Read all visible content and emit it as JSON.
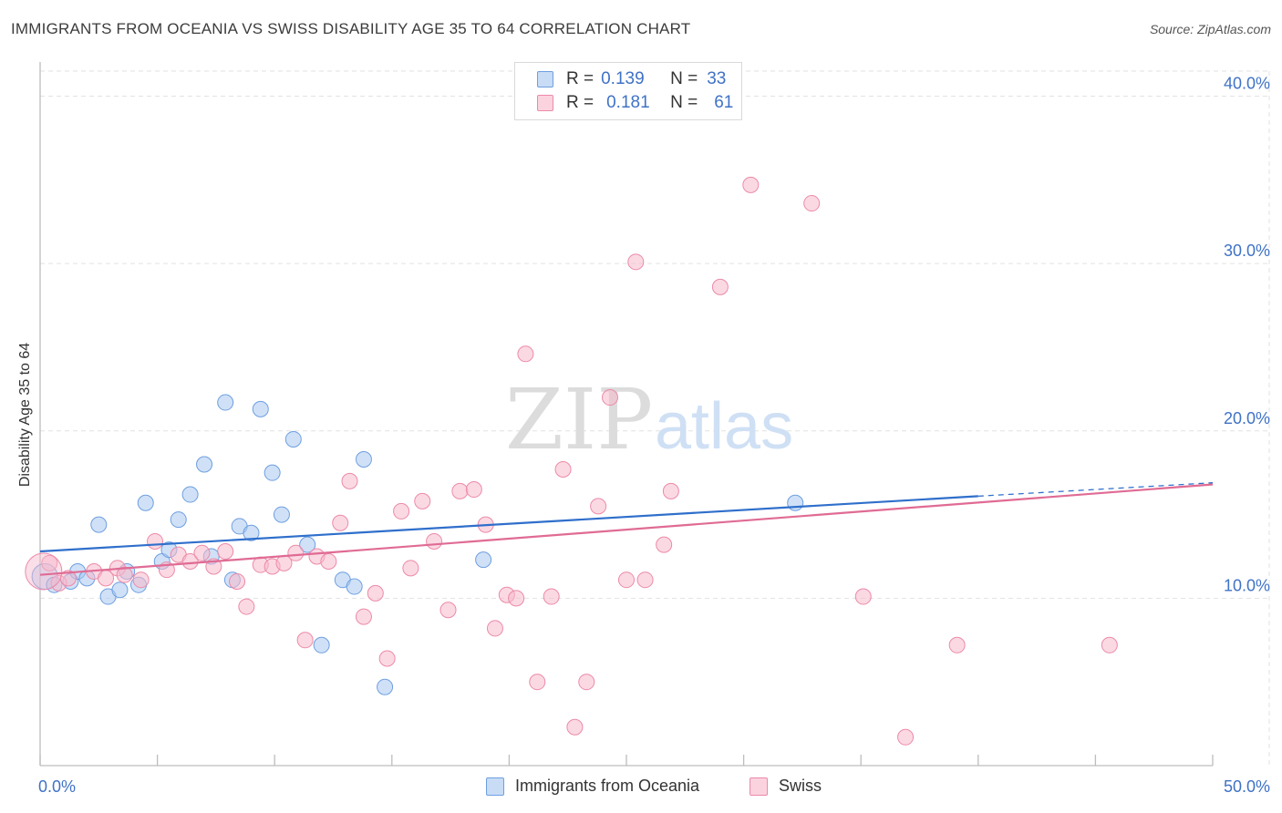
{
  "header": {
    "title": "IMMIGRANTS FROM OCEANIA VS SWISS DISABILITY AGE 35 TO 64 CORRELATION CHART",
    "source": "Source: ZipAtlas.com"
  },
  "watermark": {
    "zip": "ZIP",
    "atlas": "atlas"
  },
  "stats_legend": {
    "rows": [
      {
        "r_label": "R =",
        "r_value": "0.139",
        "n_label": "N =",
        "n_value": "33",
        "color": "#a9c8f0"
      },
      {
        "r_label": "R =",
        "r_value": "0.181",
        "n_label": "N =",
        "n_value": "61",
        "color": "#f7b9cc"
      }
    ]
  },
  "chart_data": {
    "type": "scatter",
    "title": "IMMIGRANTS FROM OCEANIA VS SWISS DISABILITY AGE 35 TO 64 CORRELATION CHART",
    "xlabel": "",
    "ylabel": "Disability Age 35 to 64",
    "xlim": [
      0,
      50
    ],
    "ylim": [
      0,
      41.5
    ],
    "x_tick_labels": [
      "0.0%",
      "50.0%"
    ],
    "y_ticks": [
      10,
      20,
      30,
      40
    ],
    "y_tick_labels": [
      "10.0%",
      "20.0%",
      "30.0%",
      "40.0%"
    ],
    "grid": true,
    "legend_position": "bottom",
    "series": [
      {
        "name": "Immigrants from Oceania",
        "color": "#a9c8f0",
        "stroke": "#6e9fe0",
        "line_color": "#2f6fcb",
        "trend": {
          "x0": 0,
          "y0": 12.8,
          "x1": 40,
          "y1": 16.1,
          "dash_to_x": 50,
          "dash_to_y": 16.9
        },
        "points": [
          [
            0.2,
            11.3
          ],
          [
            0.6,
            10.8
          ],
          [
            1.3,
            11.0
          ],
          [
            1.6,
            11.6
          ],
          [
            2.0,
            11.2
          ],
          [
            2.5,
            14.4
          ],
          [
            2.9,
            10.1
          ],
          [
            3.4,
            10.5
          ],
          [
            3.7,
            11.6
          ],
          [
            4.2,
            10.8
          ],
          [
            4.5,
            15.7
          ],
          [
            5.2,
            12.2
          ],
          [
            5.5,
            12.9
          ],
          [
            5.9,
            14.7
          ],
          [
            6.4,
            16.2
          ],
          [
            7.0,
            18.0
          ],
          [
            7.3,
            12.5
          ],
          [
            7.9,
            21.7
          ],
          [
            8.2,
            11.1
          ],
          [
            8.5,
            14.3
          ],
          [
            9.0,
            13.9
          ],
          [
            9.4,
            21.3
          ],
          [
            9.9,
            17.5
          ],
          [
            10.3,
            15.0
          ],
          [
            10.8,
            19.5
          ],
          [
            11.4,
            13.2
          ],
          [
            12.0,
            7.2
          ],
          [
            12.9,
            11.1
          ],
          [
            13.4,
            10.7
          ],
          [
            13.8,
            18.3
          ],
          [
            14.7,
            4.7
          ],
          [
            18.9,
            12.3
          ],
          [
            32.2,
            15.7
          ]
        ]
      },
      {
        "name": "Swiss",
        "color": "#f7b9cc",
        "stroke": "#ec8aa8",
        "line_color": "#e06b94",
        "trend": {
          "x0": 0,
          "y0": 11.4,
          "x1": 50,
          "y1": 16.8
        },
        "points": [
          [
            0.4,
            12.1
          ],
          [
            0.8,
            10.9
          ],
          [
            1.2,
            11.2
          ],
          [
            2.3,
            11.6
          ],
          [
            2.8,
            11.2
          ],
          [
            3.3,
            11.8
          ],
          [
            3.6,
            11.4
          ],
          [
            4.3,
            11.1
          ],
          [
            4.9,
            13.4
          ],
          [
            5.4,
            11.7
          ],
          [
            5.9,
            12.6
          ],
          [
            6.4,
            12.2
          ],
          [
            6.9,
            12.7
          ],
          [
            7.4,
            11.9
          ],
          [
            7.9,
            12.8
          ],
          [
            8.4,
            11.0
          ],
          [
            8.8,
            9.5
          ],
          [
            9.4,
            12.0
          ],
          [
            9.9,
            11.9
          ],
          [
            10.4,
            12.1
          ],
          [
            10.9,
            12.7
          ],
          [
            11.3,
            7.5
          ],
          [
            11.8,
            12.5
          ],
          [
            12.3,
            12.2
          ],
          [
            12.8,
            14.5
          ],
          [
            13.2,
            17.0
          ],
          [
            13.8,
            8.9
          ],
          [
            14.3,
            10.3
          ],
          [
            14.8,
            6.4
          ],
          [
            15.4,
            15.2
          ],
          [
            15.8,
            11.8
          ],
          [
            16.3,
            15.8
          ],
          [
            16.8,
            13.4
          ],
          [
            17.4,
            9.3
          ],
          [
            17.9,
            16.4
          ],
          [
            18.5,
            16.5
          ],
          [
            19.0,
            14.4
          ],
          [
            19.4,
            8.2
          ],
          [
            19.9,
            10.2
          ],
          [
            20.3,
            10.0
          ],
          [
            20.7,
            24.6
          ],
          [
            21.2,
            5.0
          ],
          [
            21.8,
            10.1
          ],
          [
            22.3,
            17.7
          ],
          [
            22.8,
            2.3
          ],
          [
            23.3,
            5.0
          ],
          [
            23.8,
            15.5
          ],
          [
            24.3,
            22.0
          ],
          [
            25.0,
            11.1
          ],
          [
            25.4,
            30.1
          ],
          [
            25.8,
            11.1
          ],
          [
            26.6,
            13.2
          ],
          [
            26.9,
            16.4
          ],
          [
            29.0,
            28.6
          ],
          [
            30.3,
            34.7
          ],
          [
            32.9,
            33.6
          ],
          [
            35.1,
            10.1
          ],
          [
            36.9,
            1.7
          ],
          [
            39.1,
            7.2
          ],
          [
            45.6,
            7.2
          ],
          [
            0.15,
            11.6
          ]
        ]
      }
    ]
  }
}
